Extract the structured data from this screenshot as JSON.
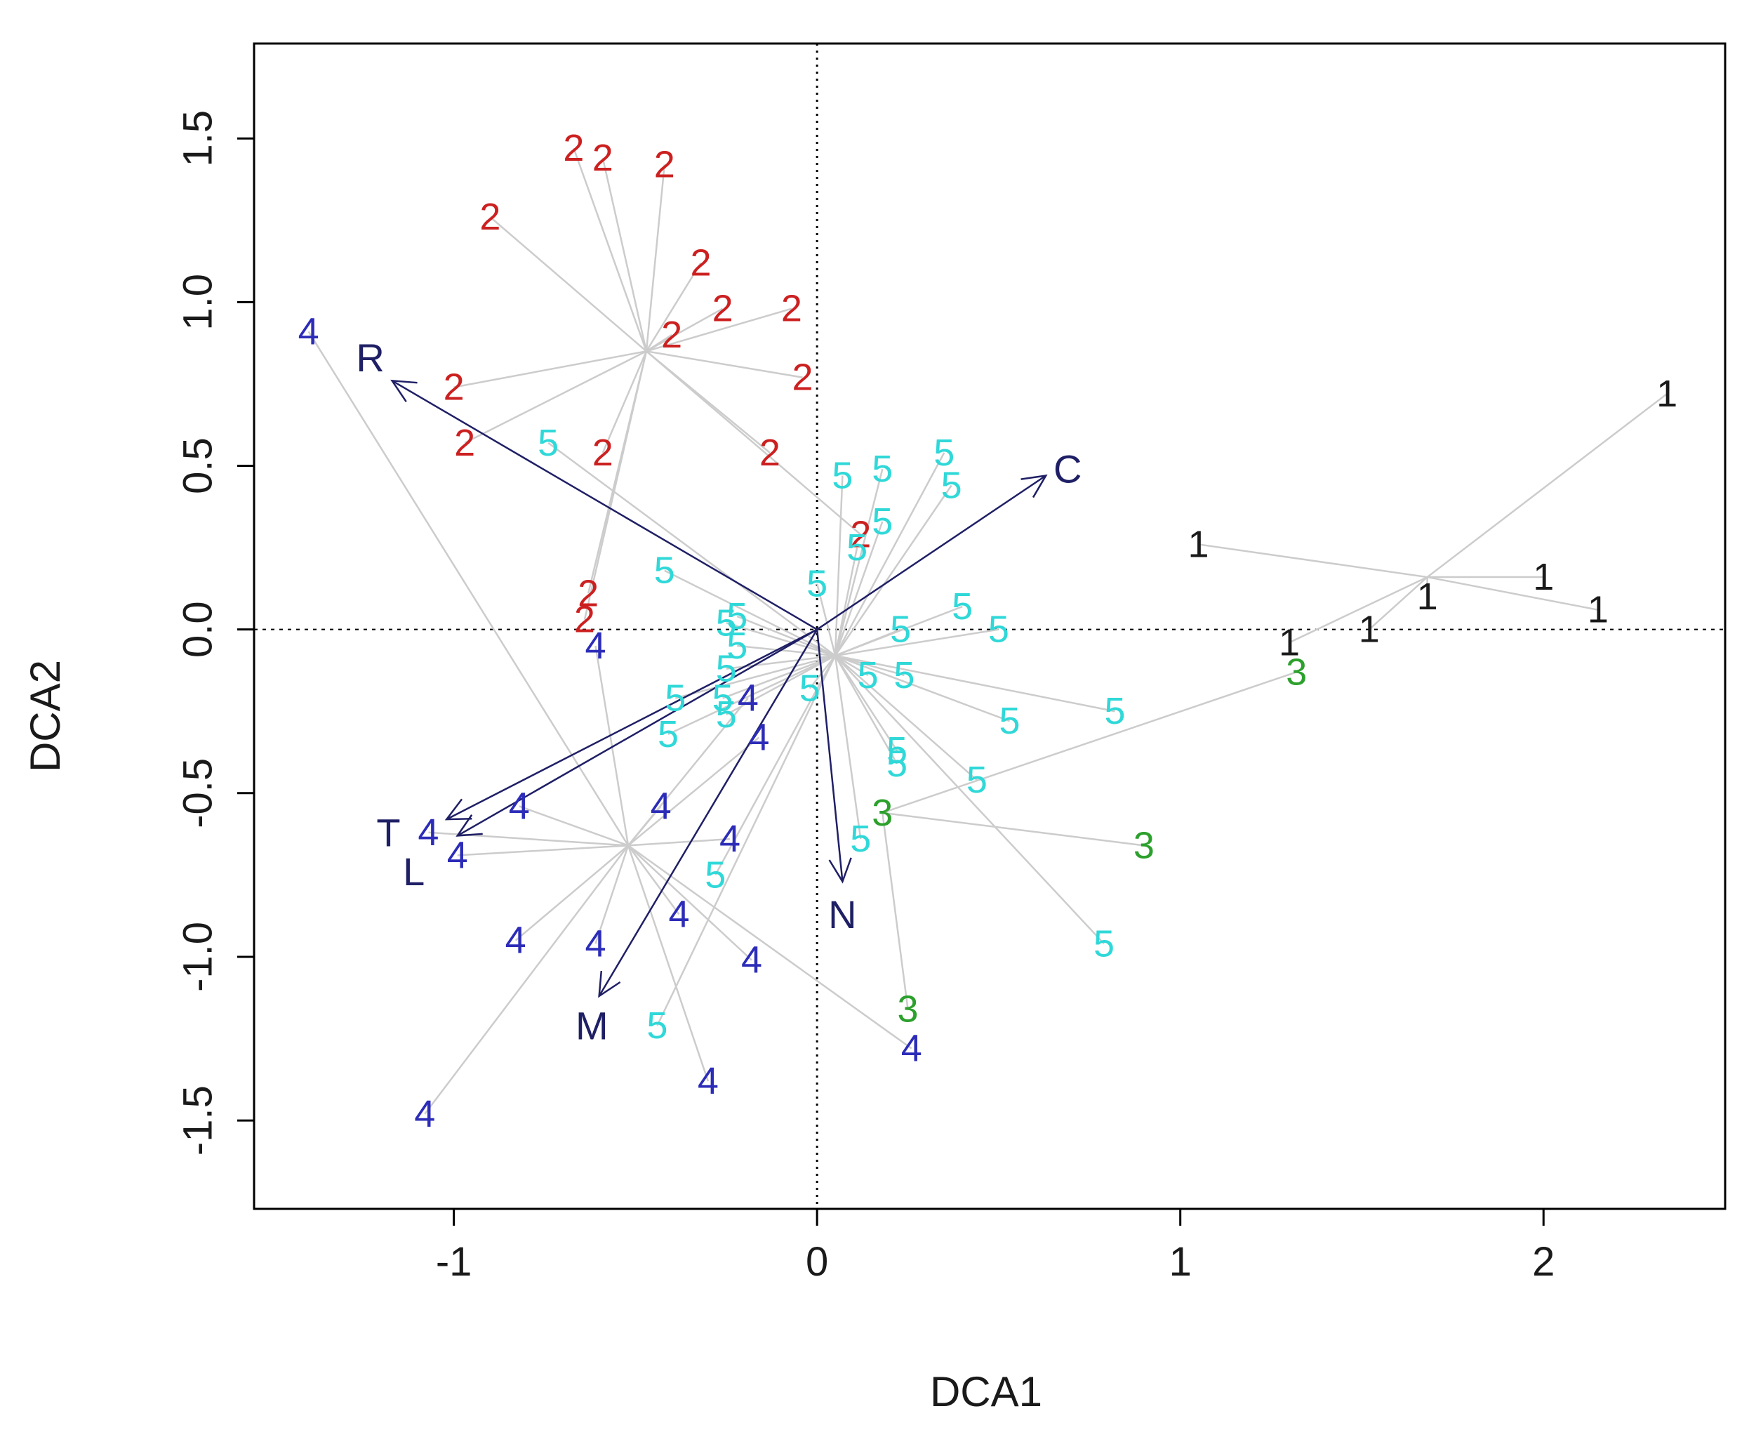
{
  "chart_data": {
    "type": "scatter",
    "subtype": "DCA ordination biplot with spider lines and environmental vectors",
    "xlabel": "DCA1",
    "ylabel": "DCA2",
    "xlim": [
      -1.55,
      2.5
    ],
    "ylim": [
      -1.77,
      1.79
    ],
    "x_ticks": [
      -1,
      0,
      1,
      2
    ],
    "x_tick_labels": [
      "-1",
      "0",
      "1",
      "2"
    ],
    "y_ticks": [
      -1.5,
      -1.0,
      -0.5,
      0.0,
      0.5,
      1.0,
      1.5
    ],
    "y_tick_labels": [
      "-1.5",
      "-1.0",
      "-0.5",
      "0.0",
      "0.5",
      "1.0",
      "1.5"
    ],
    "reference_lines": {
      "x": 0,
      "y": 0,
      "style": "dotted"
    },
    "colors": {
      "group_1": "#1a1a1a",
      "group_2": "#cc2020",
      "group_3": "#2ca02c",
      "group_4": "#2c2cb8",
      "group_5": "#30d8d8",
      "spider": "#cccccc",
      "vector": "#1f1f66",
      "axis": "#000000"
    },
    "groups": [
      {
        "name": "1",
        "color": "#1a1a1a",
        "centroid": [
          1.68,
          0.16
        ],
        "points": [
          [
            2.34,
            0.72
          ],
          [
            1.05,
            0.26
          ],
          [
            2.0,
            0.16
          ],
          [
            1.68,
            0.1
          ],
          [
            2.15,
            0.06
          ],
          [
            1.52,
            0.0
          ],
          [
            1.3,
            -0.04
          ]
        ]
      },
      {
        "name": "2",
        "color": "#cc2020",
        "centroid": [
          -0.47,
          0.85
        ],
        "points": [
          [
            -0.67,
            1.47
          ],
          [
            -0.59,
            1.44
          ],
          [
            -0.42,
            1.42
          ],
          [
            -0.9,
            1.26
          ],
          [
            -0.32,
            1.12
          ],
          [
            -0.26,
            0.98
          ],
          [
            -0.07,
            0.98
          ],
          [
            -0.4,
            0.9
          ],
          [
            -1.0,
            0.74
          ],
          [
            -0.04,
            0.77
          ],
          [
            -0.97,
            0.57
          ],
          [
            -0.59,
            0.54
          ],
          [
            -0.13,
            0.54
          ],
          [
            0.12,
            0.29
          ],
          [
            -0.63,
            0.11
          ],
          [
            -0.64,
            0.03
          ]
        ]
      },
      {
        "name": "3",
        "color": "#2ca02c",
        "centroid": [
          0.18,
          -0.56
        ],
        "points": [
          [
            1.32,
            -0.13
          ],
          [
            0.18,
            -0.56
          ],
          [
            0.9,
            -0.66
          ],
          [
            0.25,
            -1.16
          ]
        ]
      },
      {
        "name": "4",
        "color": "#2c2cb8",
        "centroid": [
          -0.52,
          -0.66
        ],
        "points": [
          [
            -1.4,
            0.91
          ],
          [
            -0.61,
            -0.05
          ],
          [
            -0.19,
            -0.21
          ],
          [
            -0.16,
            -0.33
          ],
          [
            -0.82,
            -0.54
          ],
          [
            -0.43,
            -0.54
          ],
          [
            -1.07,
            -0.62
          ],
          [
            -0.24,
            -0.64
          ],
          [
            -0.99,
            -0.69
          ],
          [
            -0.38,
            -0.87
          ],
          [
            -0.83,
            -0.95
          ],
          [
            -0.61,
            -0.96
          ],
          [
            -0.18,
            -1.01
          ],
          [
            0.26,
            -1.28
          ],
          [
            -0.3,
            -1.38
          ],
          [
            -1.08,
            -1.48
          ]
        ]
      },
      {
        "name": "5",
        "color": "#30d8d8",
        "centroid": [
          0.05,
          -0.08
        ],
        "points": [
          [
            -0.74,
            0.57
          ],
          [
            0.07,
            0.47
          ],
          [
            0.18,
            0.49
          ],
          [
            0.35,
            0.54
          ],
          [
            0.37,
            0.44
          ],
          [
            0.18,
            0.33
          ],
          [
            0.11,
            0.25
          ],
          [
            -0.42,
            0.18
          ],
          [
            0.0,
            0.14
          ],
          [
            -0.22,
            0.04
          ],
          [
            -0.25,
            0.02
          ],
          [
            0.4,
            0.07
          ],
          [
            0.5,
            0.0
          ],
          [
            0.23,
            0.0
          ],
          [
            -0.22,
            -0.05
          ],
          [
            -0.25,
            -0.12
          ],
          [
            0.24,
            -0.14
          ],
          [
            0.14,
            -0.14
          ],
          [
            -0.02,
            -0.18
          ],
          [
            -0.39,
            -0.21
          ],
          [
            -0.26,
            -0.21
          ],
          [
            -0.25,
            -0.26
          ],
          [
            -0.41,
            -0.32
          ],
          [
            0.82,
            -0.25
          ],
          [
            0.53,
            -0.28
          ],
          [
            0.22,
            -0.37
          ],
          [
            0.22,
            -0.41
          ],
          [
            0.44,
            -0.46
          ],
          [
            0.12,
            -0.64
          ],
          [
            -0.28,
            -0.75
          ],
          [
            0.79,
            -0.96
          ],
          [
            -0.44,
            -1.21
          ]
        ]
      }
    ],
    "vectors": [
      {
        "name": "R",
        "x": -1.17,
        "y": 0.76
      },
      {
        "name": "C",
        "x": 0.63,
        "y": 0.47
      },
      {
        "name": "T",
        "x": -1.02,
        "y": -0.58
      },
      {
        "name": "L",
        "x": -0.99,
        "y": -0.63
      },
      {
        "name": "M",
        "x": -0.6,
        "y": -1.12
      },
      {
        "name": "N",
        "x": 0.07,
        "y": -0.77
      }
    ],
    "vector_labels": [
      {
        "name": "R",
        "x": -1.23,
        "y": 0.83
      },
      {
        "name": "C",
        "x": 0.69,
        "y": 0.49
      },
      {
        "name": "T",
        "x": -1.18,
        "y": -0.62
      },
      {
        "name": "L",
        "x": -1.11,
        "y": -0.74
      },
      {
        "name": "M",
        "x": -0.62,
        "y": -1.21
      },
      {
        "name": "N",
        "x": 0.07,
        "y": -0.87
      }
    ]
  }
}
